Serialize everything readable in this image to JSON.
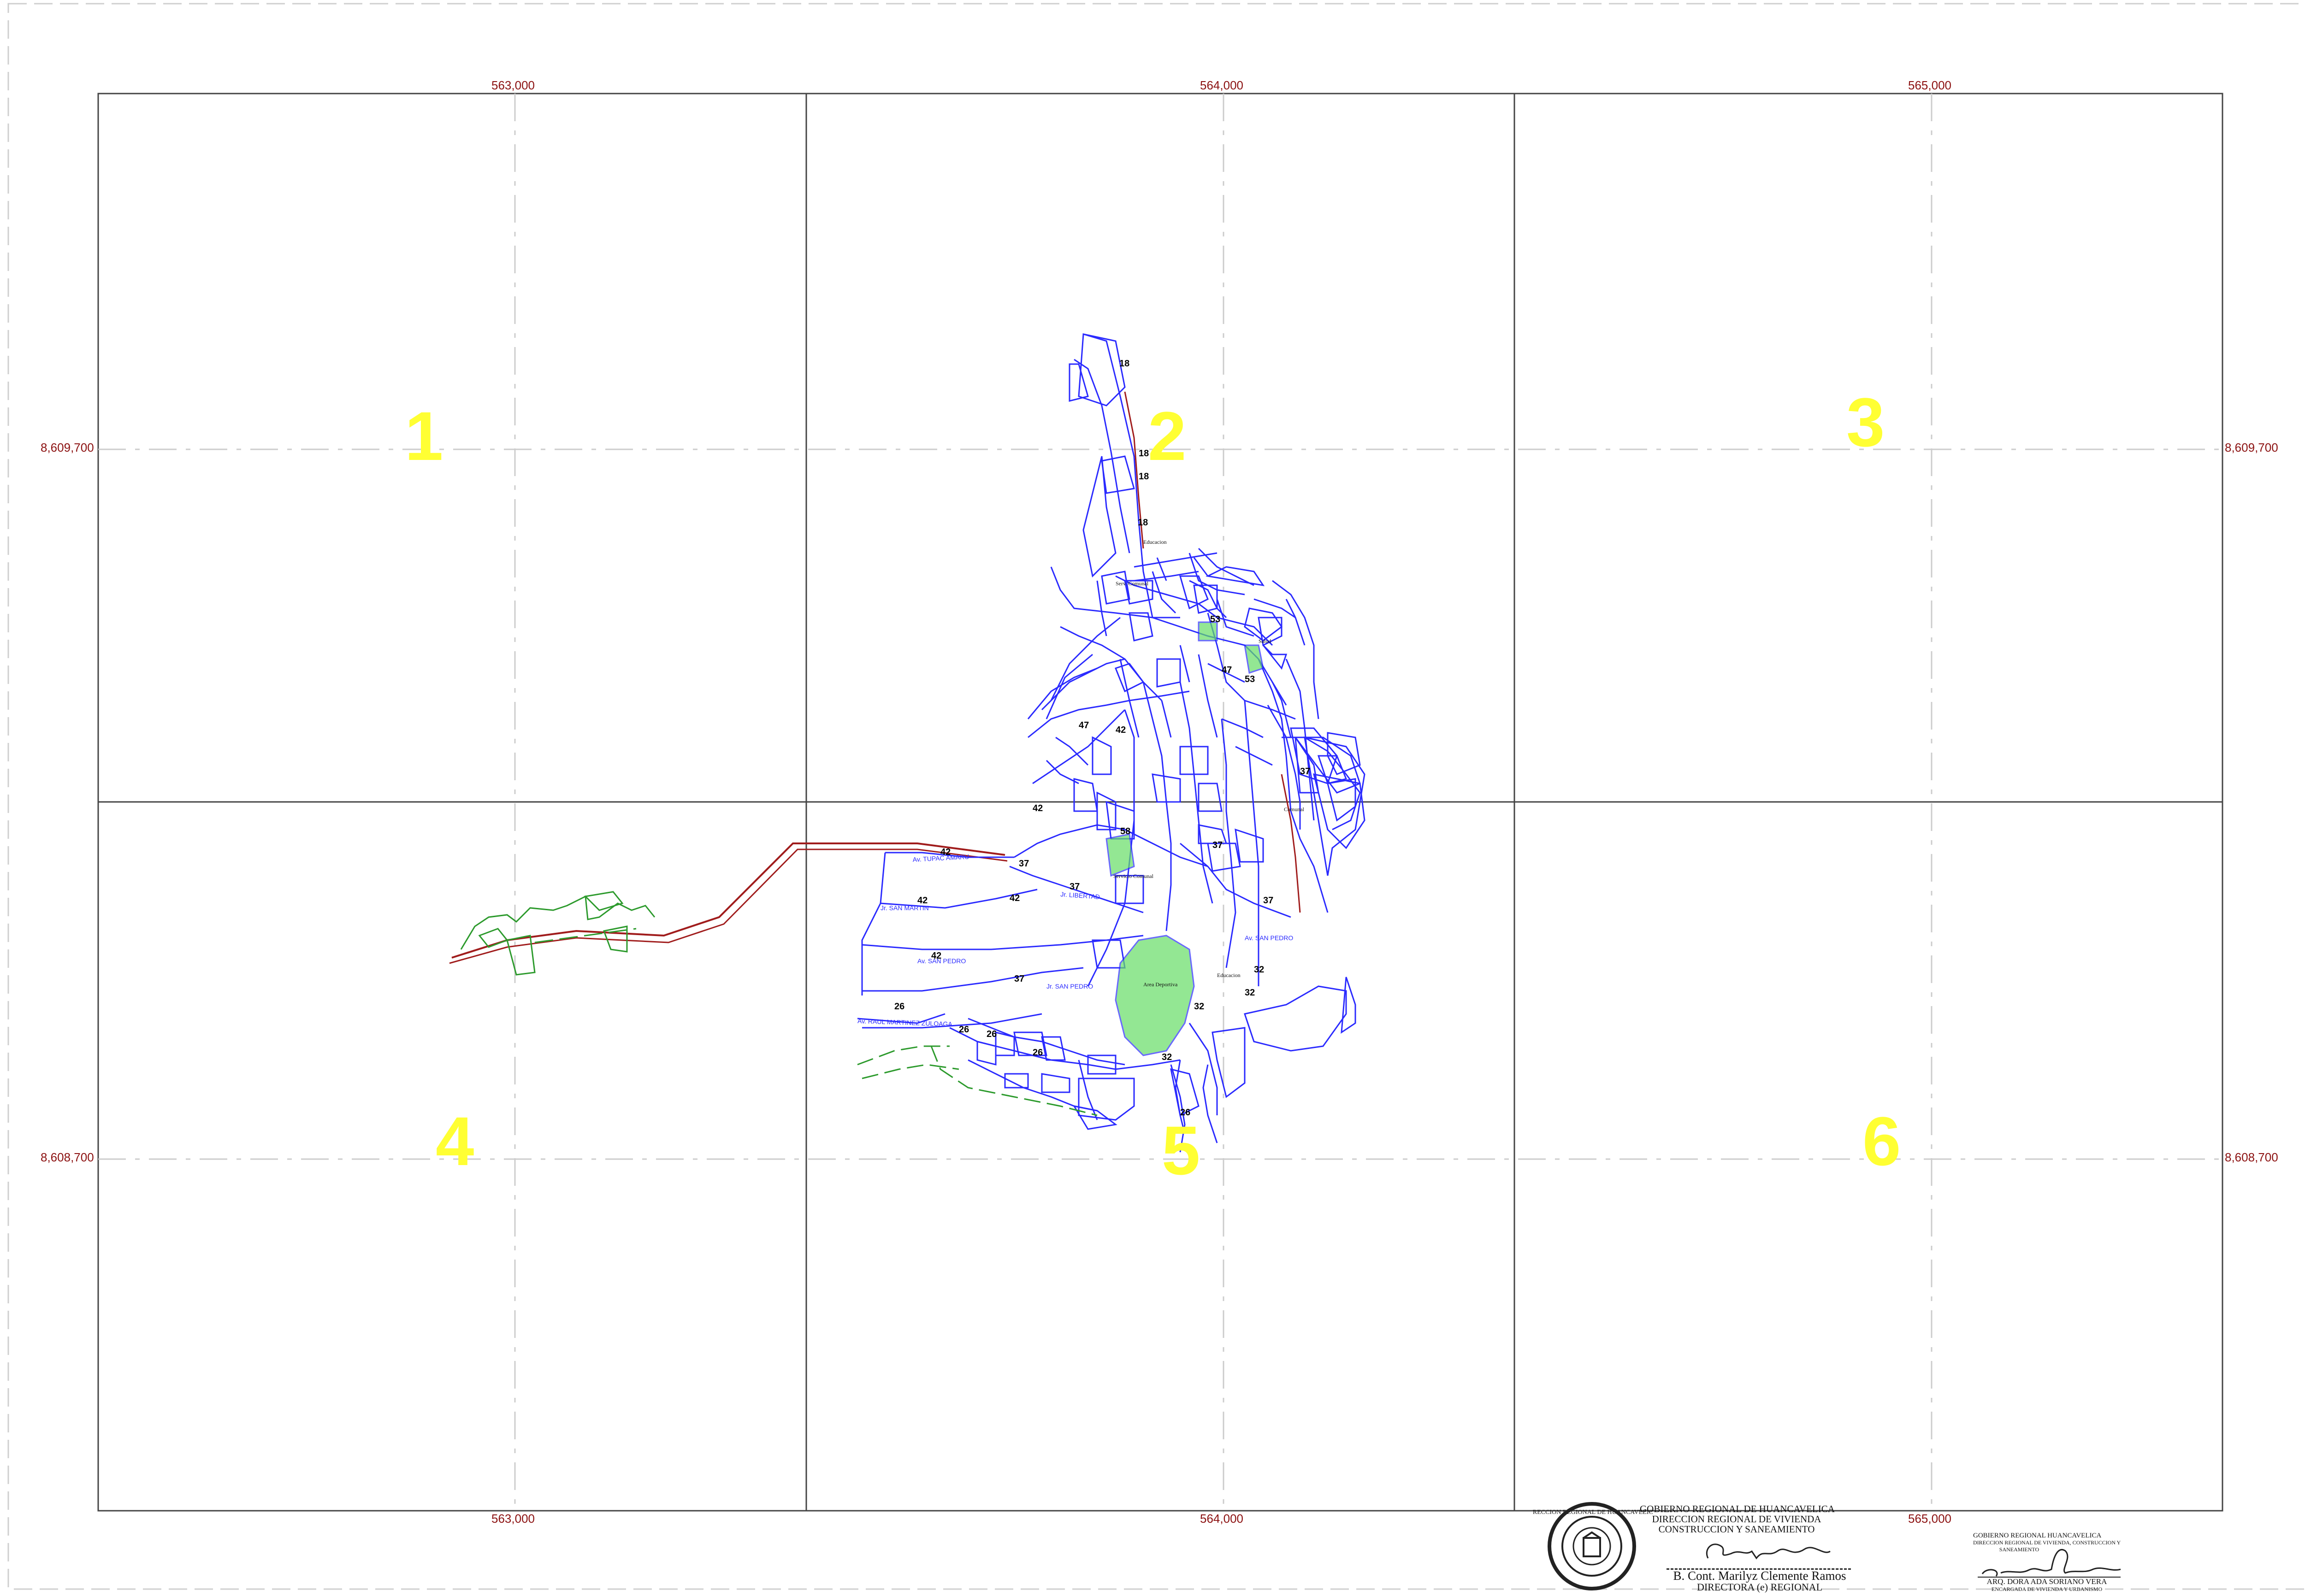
{
  "grid": {
    "easting_labels": [
      "563,000",
      "564,000",
      "565,000"
    ],
    "northing_labels": [
      "8,609,700",
      "8,608,700"
    ],
    "sector_numbers": [
      "1",
      "2",
      "3",
      "4",
      "5",
      "6"
    ]
  },
  "map_labels": {
    "streets": [
      "Av. TUPAC AMARU",
      "Jr. SAN MARTIN",
      "Av. SAN PEDRO",
      "Av. RAUL MARTINEZ ZULOAGA",
      "Jr. LIBERTAD",
      "Av. SAN PEDRO",
      "Jr. SAN PEDRO"
    ],
    "places": [
      "Educacion",
      "Serv. Comunal",
      "Salud",
      "Servicio Comunal",
      "Area Deportiva",
      "Educacion",
      "Comunal"
    ],
    "lot_numbers": [
      "18",
      "18",
      "18",
      "18",
      "53",
      "53",
      "47",
      "47",
      "42",
      "42",
      "42",
      "42",
      "42",
      "42",
      "37",
      "37",
      "37",
      "37",
      "37",
      "37",
      "32",
      "32",
      "32",
      "32",
      "26",
      "26",
      "26",
      "26",
      "26",
      "58"
    ]
  },
  "colors": {
    "streets": "#2a2aff",
    "road": "#a01c1c",
    "green_area": "#66dd66",
    "grid_line": "#444444",
    "coord_text": "#8b1010",
    "sector_number": "#ffff33"
  },
  "stamps": {
    "left": {
      "line1": "GOBIERNO REGIONAL DE HUANCAVELICA",
      "line2": "DIRECCION REGIONAL DE VIVIENDA",
      "line3": "CONSTRUCCION Y SANEAMIENTO",
      "name": "B. Cont. Marilyz Clemente Ramos",
      "title": "DIRECTORA (e) REGIONAL",
      "seal_text": "DIRECCION REGIONAL DE HUANCAVELICA"
    },
    "right": {
      "line1": "GOBIERNO REGIONAL HUANCAVELICA",
      "line2": "DIRECCION REGIONAL DE VIVIENDA, CONSTRUCCION Y",
      "line3": "SANEAMIENTO",
      "name": "ARQ. DORA ADA SORIANO VERA",
      "title": "ENCARGADA DE VIVIENDA Y URBANISMO"
    }
  }
}
